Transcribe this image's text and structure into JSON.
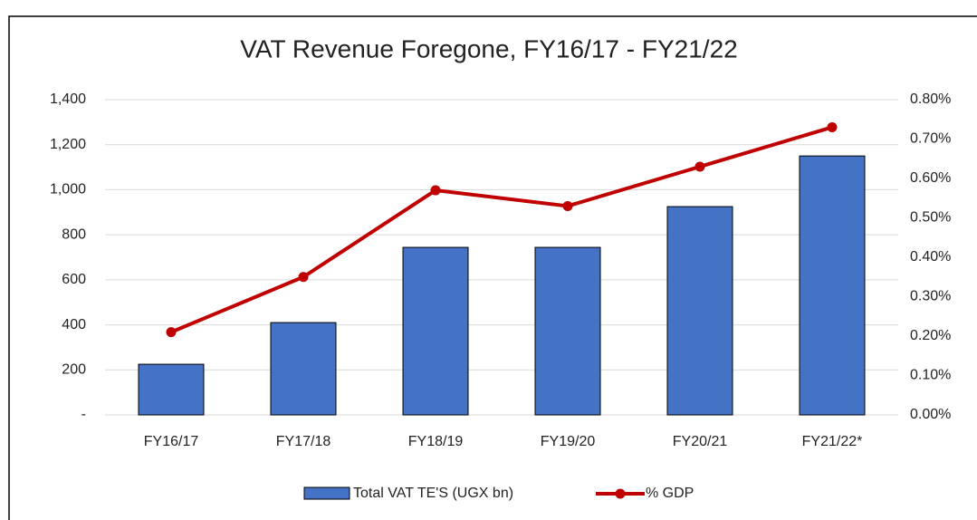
{
  "chart_data": {
    "type": "bar_line",
    "title": "VAT Revenue Foregone, FY16/17 - FY21/22",
    "categories": [
      "FY16/17",
      "FY17/18",
      "FY18/19",
      "FY19/20",
      "FY20/21",
      "FY21/22*"
    ],
    "series": [
      {
        "name": "Total VAT TE'S (UGX bn)",
        "color": "#4472c4",
        "type": "bar",
        "values": [
          225,
          410,
          744,
          744,
          925,
          1150
        ]
      },
      {
        "name": "% GDP",
        "color": "#c00000",
        "type": "line",
        "axis": "y2",
        "values": [
          0.21,
          0.35,
          0.57,
          0.53,
          0.63,
          0.73
        ]
      }
    ],
    "ylim": [
      0,
      1400
    ],
    "yticks": [
      {
        "value": 0,
        "label": "-"
      },
      200,
      400,
      600,
      800,
      {
        "value": 1000,
        "label": "1,000"
      },
      {
        "value": 1200,
        "label": "1,200"
      },
      {
        "value": 1400,
        "label": "1,400"
      }
    ],
    "y2lim": [
      0,
      0.8
    ],
    "y2ticks": [
      {
        "value": 0,
        "label": "0.00%"
      },
      {
        "value": 0.1,
        "label": "0.10%"
      },
      {
        "value": 0.2,
        "label": "0.20%"
      },
      {
        "value": 0.3,
        "label": "0.30%"
      },
      {
        "value": 0.4,
        "label": "0.40%"
      },
      {
        "value": 0.5,
        "label": "0.50%"
      },
      {
        "value": 0.6,
        "label": "0.60%"
      },
      {
        "value": 0.7,
        "label": "0.70%"
      },
      {
        "value": 0.8,
        "label": "0.80%"
      }
    ],
    "grid": true,
    "legend": "bottom"
  }
}
